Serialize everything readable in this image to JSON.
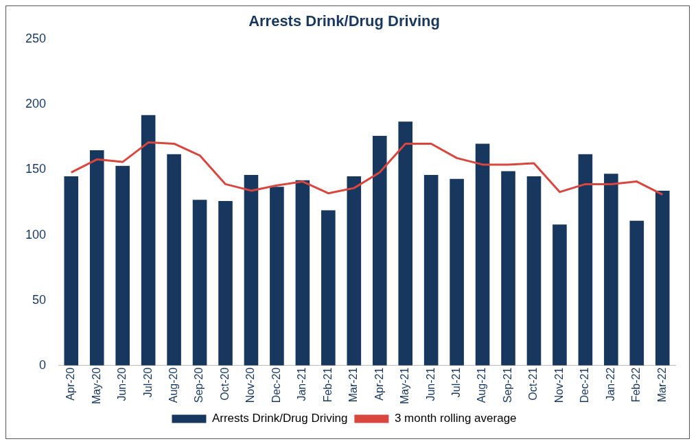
{
  "chart_data": {
    "type": "bar",
    "title": "Arrests Drink/Drug Driving",
    "categories": [
      "Apr-20",
      "May-20",
      "Jun-20",
      "Jul-20",
      "Aug-20",
      "Sep-20",
      "Oct-20",
      "Nov-20",
      "Dec-20",
      "Jan-21",
      "Feb-21",
      "Mar-21",
      "Apr-21",
      "May-21",
      "Jun-21",
      "Jul-21",
      "Aug-21",
      "Sep-21",
      "Oct-21",
      "Nov-21",
      "Dec-21",
      "Jan-22",
      "Feb-22",
      "Mar-22"
    ],
    "series": [
      {
        "name": "Arrests Drink/Drug Driving",
        "color": "#17375e",
        "values": [
          145,
          165,
          153,
          192,
          162,
          127,
          126,
          146,
          137,
          142,
          119,
          145,
          176,
          187,
          146,
          143,
          170,
          149,
          145,
          108,
          162,
          147,
          111,
          134
        ]
      },
      {
        "name": "3 month rolling average",
        "type": "line",
        "color": "#d9463e",
        "values": [
          148,
          158,
          156,
          171,
          170,
          161,
          139,
          134,
          138,
          141,
          132,
          136,
          148,
          170,
          170,
          159,
          154,
          154,
          155,
          133,
          139,
          139,
          141,
          131
        ]
      }
    ],
    "ylim": [
      0,
      250
    ],
    "yticks": [
      0,
      50,
      100,
      150,
      200,
      250
    ],
    "grid": false,
    "legend": "bottom",
    "marker": "none"
  }
}
